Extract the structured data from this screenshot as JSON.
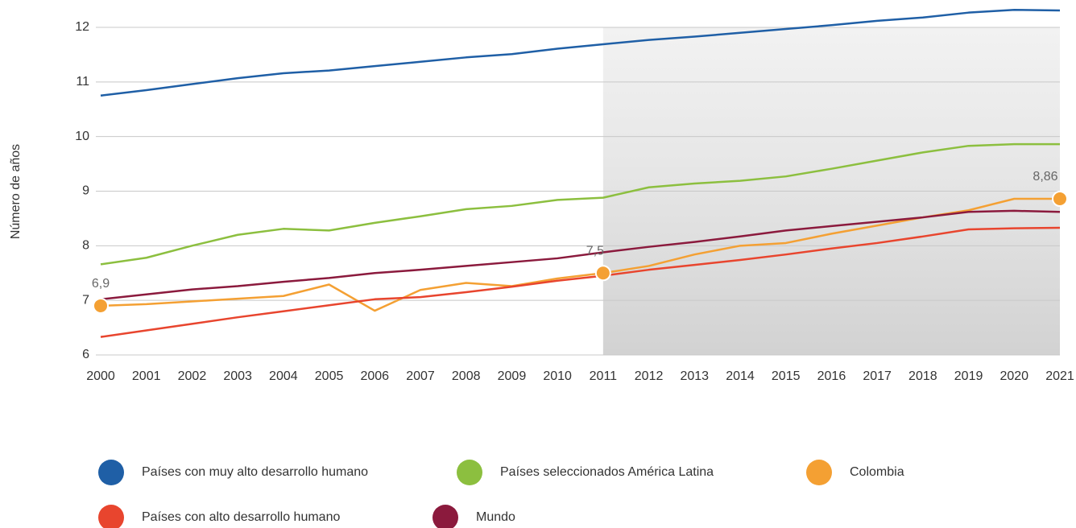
{
  "chart_data": {
    "type": "line",
    "y_label": "Número de años",
    "x": [
      2000,
      2001,
      2002,
      2003,
      2004,
      2005,
      2006,
      2007,
      2008,
      2009,
      2010,
      2011,
      2012,
      2013,
      2014,
      2015,
      2016,
      2017,
      2018,
      2019,
      2020,
      2021
    ],
    "xlim": [
      2000,
      2021
    ],
    "xticks": [
      2000,
      2001,
      2002,
      2003,
      2004,
      2005,
      2006,
      2007,
      2008,
      2009,
      2010,
      2011,
      2012,
      2013,
      2014,
      2015,
      2016,
      2017,
      2018,
      2019,
      2020,
      2021
    ],
    "ylim": [
      6,
      12
    ],
    "yticks": [
      6,
      7,
      8,
      9,
      10,
      11,
      12
    ],
    "grid": true,
    "shade_xlim": [
      2011,
      2021
    ],
    "series": [
      {
        "name": "Países con muy alto desarrollo humano",
        "color": "#1f5fa6",
        "values": [
          10.75,
          10.85,
          10.96,
          11.07,
          11.16,
          11.21,
          11.29,
          11.37,
          11.45,
          11.51,
          11.61,
          11.69,
          11.77,
          11.83,
          11.9,
          11.97,
          12.04,
          12.12,
          12.18,
          12.27,
          12.32,
          12.31
        ]
      },
      {
        "name": "Países seleccionados América Latina",
        "color": "#8cbf3f",
        "values": [
          7.66,
          7.78,
          8.0,
          8.2,
          8.31,
          8.28,
          8.42,
          8.54,
          8.67,
          8.73,
          8.84,
          8.88,
          9.07,
          9.14,
          9.19,
          9.27,
          9.41,
          9.56,
          9.71,
          9.83,
          9.86,
          9.86
        ]
      },
      {
        "name": "Colombia",
        "color": "#f4a033",
        "values": [
          6.9,
          6.93,
          6.98,
          7.03,
          7.08,
          7.29,
          6.81,
          7.19,
          7.32,
          7.26,
          7.4,
          7.5,
          7.63,
          7.84,
          8.0,
          8.05,
          8.22,
          8.37,
          8.52,
          8.65,
          8.86,
          8.86
        ],
        "value_labels": [
          "6,9",
          null,
          null,
          null,
          null,
          null,
          null,
          null,
          null,
          null,
          null,
          "7,5",
          null,
          null,
          null,
          null,
          null,
          null,
          null,
          null,
          null,
          "8,86"
        ]
      },
      {
        "name": "Países con alto desarrollo humano",
        "color": "#e8452e",
        "values": [
          6.33,
          6.45,
          6.57,
          6.69,
          6.8,
          6.91,
          7.02,
          7.06,
          7.15,
          7.25,
          7.36,
          7.45,
          7.56,
          7.65,
          7.74,
          7.84,
          7.95,
          8.05,
          8.17,
          8.3,
          8.32,
          8.33
        ]
      },
      {
        "name": "Mundo",
        "color": "#8b1a3d",
        "values": [
          7.02,
          7.11,
          7.2,
          7.26,
          7.34,
          7.41,
          7.5,
          7.56,
          7.63,
          7.7,
          7.77,
          7.88,
          7.98,
          8.07,
          8.17,
          8.28,
          8.36,
          8.44,
          8.52,
          8.62,
          8.64,
          8.62
        ]
      }
    ]
  }
}
